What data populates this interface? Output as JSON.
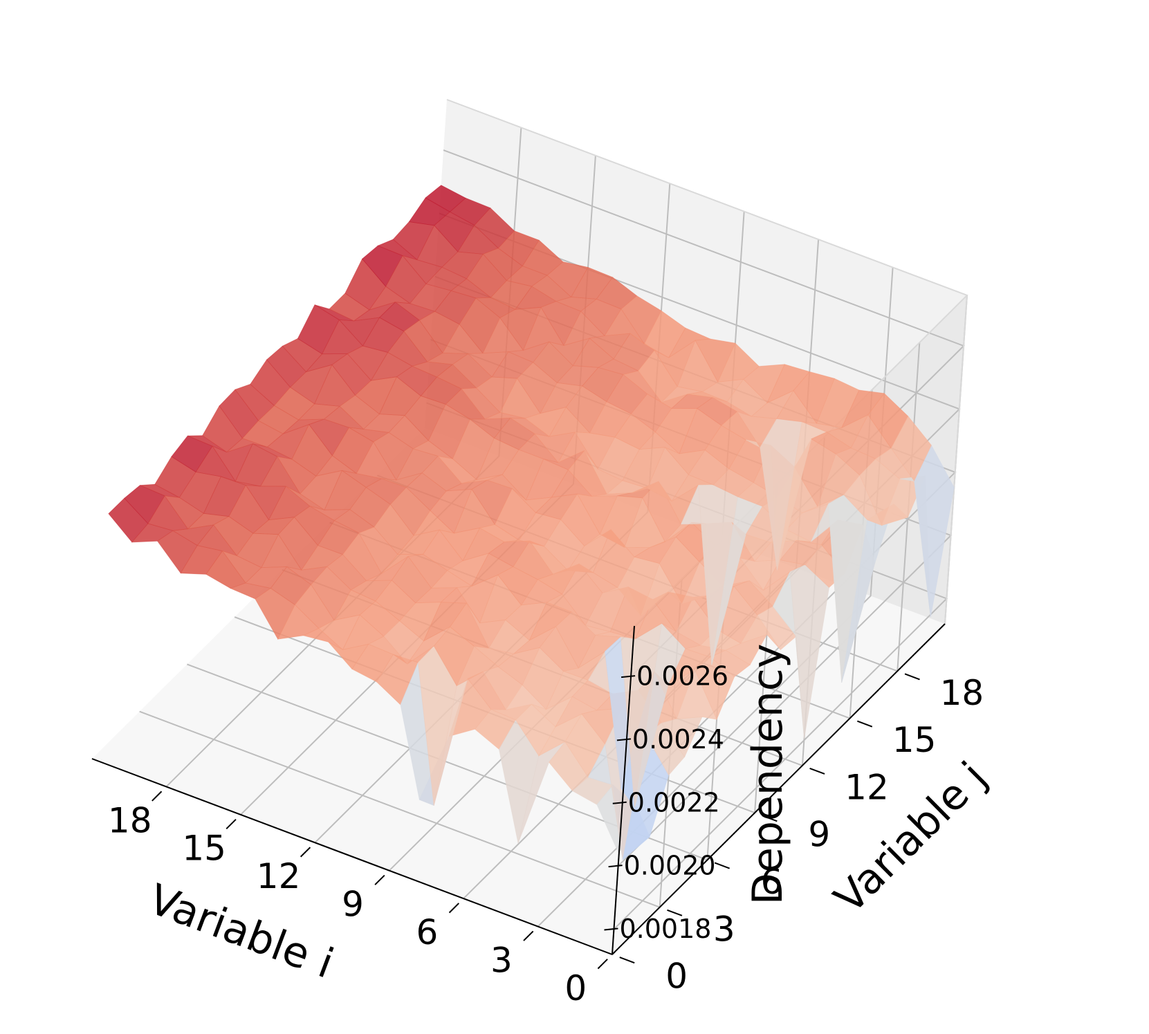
{
  "chart_data": {
    "type": "surface3d",
    "title": "",
    "xlabel": "Variable i",
    "ylabel": "Variable j",
    "zlabel": "Dependency",
    "x_ticks": [
      "0",
      "3",
      "6",
      "9",
      "12",
      "15",
      "18"
    ],
    "y_ticks": [
      "0",
      "3",
      "6",
      "9",
      "12",
      "15",
      "18"
    ],
    "z_ticks": [
      "0.0018",
      "0.0020",
      "0.0022",
      "0.0024",
      "0.0026"
    ],
    "xlim": [
      0,
      21
    ],
    "ylim": [
      0,
      21
    ],
    "zlim": [
      0.00172,
      0.00276
    ],
    "grid": true,
    "colormap": "coolwarm",
    "colors": {
      "cold": "#3b4cc0",
      "neutral": "#dddddd",
      "warm": "#b40426",
      "pane_back": "#f2f2f2",
      "pane_side": "#e9e9e9",
      "pane_floor": "#f7f7f7",
      "grid": "#bdbdbd"
    },
    "z_values": [
      [
        0.002038,
        0.002137,
        0.001993,
        0.002138,
        0.002146,
        0.002223,
        0.002165,
        0.00225,
        0.002238,
        0.002284,
        0.002186,
        0.002179,
        0.001805,
        0.002234,
        0.002229,
        0.002332,
        0.002164,
        0.002299,
        0.002207,
        0.002288,
        0.001791,
        0.002152
      ],
      [
        0.002165,
        0.002177,
        0.001891,
        0.002236,
        0.002224,
        0.002187,
        0.002294,
        0.002283,
        0.002255,
        0.002227,
        0.002266,
        0.002244,
        0.002304,
        0.002276,
        0.00229,
        0.002318,
        0.001754,
        0.002219,
        0.002152,
        0.002249,
        0.002192,
        0.002255
      ],
      [
        0.002179,
        0.002172,
        0.002227,
        0.002291,
        0.002298,
        0.002307,
        0.002214,
        0.00228,
        0.002241,
        0.002242,
        0.002328,
        0.002296,
        0.002216,
        0.002262,
        0.002274,
        0.00222,
        0.00229,
        0.002269,
        0.002281,
        0.002283,
        0.002267,
        0.002318
      ],
      [
        0.00224,
        0.002255,
        0.002293,
        0.002255,
        0.002257,
        0.001908,
        0.001798,
        0.002331,
        0.002255,
        0.002314,
        0.002269,
        0.002249,
        0.002288,
        0.002228,
        0.002238,
        0.002229,
        0.002232,
        0.002203,
        0.002319,
        0.002288,
        0.002343,
        0.002361
      ],
      [
        0.001954,
        0.002181,
        0.002223,
        0.002269,
        0.002271,
        0.002312,
        0.002308,
        0.002252,
        0.002327,
        0.002301,
        0.002214,
        0.002296,
        0.002297,
        0.002322,
        0.002234,
        0.002273,
        0.002253,
        0.002297,
        0.002337,
        0.002309,
        0.002273,
        0.002342
      ],
      [
        0.002222,
        0.002265,
        0.002265,
        0.002199,
        0.00227,
        0.00223,
        0.002284,
        0.002245,
        0.002337,
        0.002196,
        0.002312,
        0.002346,
        0.002342,
        0.002288,
        0.001792,
        0.002274,
        0.002269,
        0.002337,
        0.001892,
        0.002312,
        0.002257,
        0.002349
      ],
      [
        0.002256,
        0.002269,
        0.002218,
        0.002247,
        0.002315,
        0.002332,
        0.002328,
        0.002236,
        0.002289,
        0.002256,
        0.002303,
        0.002283,
        0.002251,
        0.002257,
        0.002331,
        0.002282,
        0.002283,
        0.002325,
        0.002251,
        0.002292,
        0.002331,
        0.002341
      ],
      [
        0.002204,
        0.002337,
        0.002309,
        0.002275,
        0.002266,
        0.002259,
        0.002329,
        0.002305,
        0.002351,
        0.002274,
        0.00236,
        0.002254,
        0.002361,
        0.002363,
        0.002251,
        0.002285,
        0.002313,
        0.002341,
        0.002335,
        0.00227,
        0.002263,
        0.002335
      ],
      [
        0.001974,
        0.001906,
        0.002235,
        0.00231,
        0.002254,
        0.002294,
        0.002291,
        0.002322,
        0.002289,
        0.002251,
        0.002279,
        0.002266,
        0.002338,
        0.002298,
        0.002262,
        0.002342,
        0.002272,
        0.002365,
        0.00235,
        0.002287,
        0.002308,
        0.002299
      ],
      [
        0.002245,
        0.002329,
        0.002331,
        0.002342,
        0.002367,
        0.002255,
        0.002357,
        0.002333,
        0.002365,
        0.002298,
        0.002333,
        0.002364,
        0.002307,
        0.002264,
        0.002257,
        0.002306,
        0.002311,
        0.002336,
        0.002331,
        0.002289,
        0.00227,
        0.002343
      ],
      [
        0.002288,
        0.002325,
        0.002245,
        0.002268,
        0.002341,
        0.002337,
        0.002292,
        0.002346,
        0.002332,
        0.002288,
        0.002325,
        0.002324,
        0.002361,
        0.002372,
        0.002264,
        0.002315,
        0.002339,
        0.002352,
        0.002276,
        0.002276,
        0.002372,
        0.002327
      ],
      [
        0.002299,
        0.002328,
        0.002303,
        0.002302,
        0.002309,
        0.002306,
        0.002312,
        0.002293,
        0.002347,
        0.002308,
        0.002372,
        0.002286,
        0.002366,
        0.002305,
        0.002351,
        0.002299,
        0.002348,
        0.002384,
        0.002346,
        0.002361,
        0.002288,
        0.002332
      ],
      [
        0.002355,
        0.002281,
        0.002341,
        0.002335,
        0.002351,
        0.002377,
        0.002334,
        0.002361,
        0.002301,
        0.00239,
        0.002369,
        0.002337,
        0.002366,
        0.002366,
        0.002308,
        0.002351,
        0.002368,
        0.002377,
        0.002354,
        0.002385,
        0.002302,
        0.002357
      ],
      [
        0.002346,
        0.002319,
        0.002295,
        0.002341,
        0.00232,
        0.002293,
        0.002304,
        0.002314,
        0.002343,
        0.002355,
        0.002329,
        0.002291,
        0.002373,
        0.002387,
        0.002336,
        0.002302,
        0.002349,
        0.002353,
        0.00239,
        0.002348,
        0.002383,
        0.002375
      ],
      [
        0.002305,
        0.002364,
        0.002378,
        0.002385,
        0.002374,
        0.002392,
        0.002361,
        0.002383,
        0.002387,
        0.002383,
        0.002386,
        0.002328,
        0.002403,
        0.002354,
        0.002325,
        0.002383,
        0.002384,
        0.002399,
        0.002338,
        0.002396,
        0.002385,
        0.002404
      ],
      [
        0.002403,
        0.002387,
        0.002405,
        0.002345,
        0.002373,
        0.002402,
        0.002387,
        0.002407,
        0.002385,
        0.002331,
        0.00238,
        0.002356,
        0.002421,
        0.00242,
        0.002373,
        0.002358,
        0.002388,
        0.002343,
        0.002429,
        0.002398,
        0.002362,
        0.002406
      ],
      [
        0.002407,
        0.002374,
        0.002373,
        0.002428,
        0.002433,
        0.002418,
        0.002356,
        0.002431,
        0.002372,
        0.002422,
        0.002402,
        0.002406,
        0.002418,
        0.002428,
        0.002418,
        0.002402,
        0.002354,
        0.002416,
        0.002393,
        0.002416,
        0.002401,
        0.002394
      ],
      [
        0.002422,
        0.002446,
        0.002381,
        0.002402,
        0.002395,
        0.002451,
        0.002378,
        0.002384,
        0.002399,
        0.002438,
        0.002383,
        0.002381,
        0.002449,
        0.002433,
        0.002397,
        0.002375,
        0.002416,
        0.002449,
        0.002401,
        0.002405,
        0.002401,
        0.002433
      ],
      [
        0.002396,
        0.002434,
        0.002449,
        0.002426,
        0.002475,
        0.002422,
        0.002466,
        0.002408,
        0.002468,
        0.002435,
        0.002426,
        0.002411,
        0.002408,
        0.002447,
        0.002464,
        0.002449,
        0.002427,
        0.002443,
        0.002431,
        0.002459,
        0.002428,
        0.002433
      ],
      [
        0.002468,
        0.002451,
        0.002407,
        0.002406,
        0.002473,
        0.002408,
        0.002477,
        0.002417,
        0.002409,
        0.002403,
        0.002404,
        0.002478,
        0.002463,
        0.002438,
        0.002478,
        0.002477,
        0.002423,
        0.002435,
        0.002438,
        0.002437,
        0.002471,
        0.002476
      ],
      [
        0.002435,
        0.002444,
        0.002482,
        0.002427,
        0.002458,
        0.00249,
        0.002421,
        0.002415,
        0.002421,
        0.002419,
        0.002427,
        0.002426,
        0.002433,
        0.002491,
        0.002438,
        0.002423,
        0.002447,
        0.002495,
        0.002432,
        0.002491,
        0.002484,
        0.002478
      ],
      [
        0.002496,
        0.002495,
        0.002486,
        0.002439,
        0.002477,
        0.002493,
        0.002444,
        0.002488,
        0.00249,
        0.002457,
        0.002485,
        0.002478,
        0.002452,
        0.002509,
        0.002446,
        0.002446,
        0.002505,
        0.002497,
        0.002467,
        0.002473,
        0.002499,
        0.002489
      ]
    ]
  }
}
